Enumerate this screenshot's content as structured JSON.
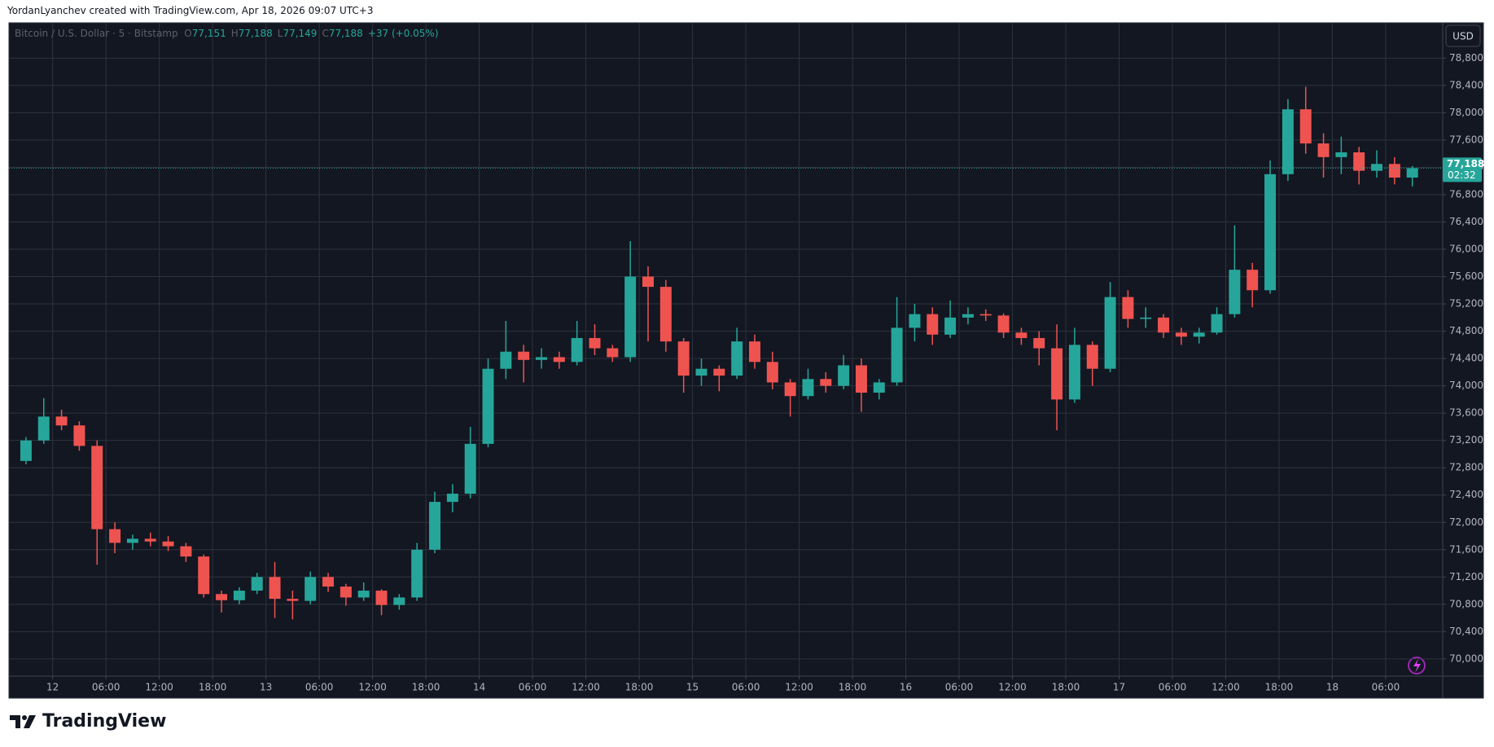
{
  "header": {
    "attribution": "YordanLyanchev created with TradingView.com, Apr 18, 2026 09:07 UTC+3"
  },
  "chart_data": {
    "type": "candlestick",
    "title": "Bitcoin / U.S. Dollar · 5 · Bitstamp",
    "ohlc_legend": [
      {
        "label": "O",
        "value": "77,151"
      },
      {
        "label": "H",
        "value": "77,188"
      },
      {
        "label": "L",
        "value": "77,149"
      },
      {
        "label": "C",
        "value": "77,188"
      }
    ],
    "change": "+37 (+0.05%)",
    "currency": "USD",
    "last_price": {
      "value": 77188,
      "label": "77,188"
    },
    "countdown": "02:32",
    "up_color": "#26a69a",
    "down_color": "#ef5350",
    "x": [
      "2026-04-11 20:00",
      "2026-04-11 22:00",
      "2026-04-12 00:00",
      "2026-04-12 02:00",
      "2026-04-12 04:00",
      "2026-04-12 06:00",
      "2026-04-12 08:00",
      "2026-04-12 10:00",
      "2026-04-12 12:00",
      "2026-04-12 14:00",
      "2026-04-12 16:00",
      "2026-04-12 18:00",
      "2026-04-12 20:00",
      "2026-04-12 22:00",
      "2026-04-13 00:00",
      "2026-04-13 02:00",
      "2026-04-13 04:00",
      "2026-04-13 06:00",
      "2026-04-13 08:00",
      "2026-04-13 10:00",
      "2026-04-13 12:00",
      "2026-04-13 14:00",
      "2026-04-13 16:00",
      "2026-04-13 18:00",
      "2026-04-13 20:00",
      "2026-04-13 22:00",
      "2026-04-14 00:00",
      "2026-04-14 02:00",
      "2026-04-14 04:00",
      "2026-04-14 06:00",
      "2026-04-14 08:00",
      "2026-04-14 10:00",
      "2026-04-14 12:00",
      "2026-04-14 14:00",
      "2026-04-14 16:00",
      "2026-04-14 18:00",
      "2026-04-14 20:00",
      "2026-04-14 22:00",
      "2026-04-15 00:00",
      "2026-04-15 02:00",
      "2026-04-15 04:00",
      "2026-04-15 06:00",
      "2026-04-15 08:00",
      "2026-04-15 10:00",
      "2026-04-15 12:00",
      "2026-04-15 14:00",
      "2026-04-15 16:00",
      "2026-04-15 18:00",
      "2026-04-15 20:00",
      "2026-04-15 22:00",
      "2026-04-16 00:00",
      "2026-04-16 02:00",
      "2026-04-16 04:00",
      "2026-04-16 06:00",
      "2026-04-16 08:00",
      "2026-04-16 10:00",
      "2026-04-16 12:00",
      "2026-04-16 14:00",
      "2026-04-16 16:00",
      "2026-04-16 18:00",
      "2026-04-16 20:00",
      "2026-04-16 22:00",
      "2026-04-17 00:00",
      "2026-04-17 02:00",
      "2026-04-17 04:00",
      "2026-04-17 06:00",
      "2026-04-17 08:00",
      "2026-04-17 10:00",
      "2026-04-17 12:00",
      "2026-04-17 14:00",
      "2026-04-17 16:00",
      "2026-04-17 18:00",
      "2026-04-17 20:00",
      "2026-04-17 22:00",
      "2026-04-18 00:00",
      "2026-04-18 02:00",
      "2026-04-18 04:00",
      "2026-04-18 06:00",
      "2026-04-18 08:00"
    ],
    "open": [
      72900,
      73200,
      73550,
      73420,
      73120,
      71900,
      71700,
      71760,
      71720,
      71650,
      71500,
      70950,
      70860,
      71000,
      71200,
      70880,
      70850,
      71200,
      71060,
      70900,
      71000,
      70790,
      70900,
      71600,
      72300,
      72420,
      73150,
      74250,
      74500,
      74380,
      74420,
      74350,
      74700,
      74550,
      74420,
      75600,
      75450,
      74650,
      74150,
      74250,
      74150,
      74650,
      74350,
      74050,
      73850,
      74100,
      74000,
      74300,
      73900,
      74050,
      74850,
      75050,
      74750,
      75000,
      75050,
      75030,
      74780,
      74700,
      74550,
      73800,
      74600,
      74250,
      75300,
      74980,
      75000,
      74780,
      74720,
      74780,
      75050,
      75700,
      75400,
      77100,
      78050,
      77550,
      77350,
      77420,
      77150,
      77250,
      77050
    ],
    "high": [
      73250,
      73820,
      73650,
      73480,
      73200,
      72000,
      71820,
      71850,
      71800,
      71700,
      71530,
      71000,
      71050,
      71260,
      71420,
      71000,
      71280,
      71260,
      71100,
      71120,
      71020,
      70950,
      71700,
      72450,
      72560,
      73400,
      74400,
      74950,
      74600,
      74550,
      74500,
      74950,
      74900,
      74600,
      76120,
      75750,
      75550,
      74700,
      74400,
      74300,
      74850,
      74750,
      74500,
      74100,
      74250,
      74200,
      74450,
      74400,
      74100,
      75300,
      75200,
      75150,
      75250,
      75150,
      75120,
      75060,
      74850,
      74800,
      74900,
      74850,
      74650,
      75520,
      75400,
      75150,
      75050,
      74850,
      74850,
      75150,
      76350,
      75800,
      77300,
      78200,
      78380,
      77700,
      77650,
      77500,
      77450,
      77350,
      77220
    ],
    "low": [
      72850,
      73150,
      73350,
      73050,
      71380,
      71550,
      71600,
      71650,
      71580,
      71420,
      70900,
      70680,
      70800,
      70950,
      70600,
      70580,
      70800,
      70980,
      70780,
      70850,
      70640,
      70720,
      70850,
      71550,
      72150,
      72350,
      73100,
      74100,
      74050,
      74250,
      74250,
      74300,
      74450,
      74350,
      74350,
      74650,
      74500,
      73900,
      74000,
      73920,
      74100,
      74250,
      73950,
      73550,
      73800,
      73900,
      73950,
      73620,
      73800,
      74000,
      74650,
      74600,
      74700,
      74900,
      74950,
      74700,
      74600,
      74300,
      73350,
      73750,
      74000,
      74200,
      74850,
      74850,
      74700,
      74600,
      74620,
      74750,
      75000,
      75150,
      75350,
      77000,
      77400,
      77050,
      77100,
      76950,
      77050,
      76950,
      76920
    ],
    "close": [
      73200,
      73550,
      73420,
      73120,
      71900,
      71700,
      71760,
      71720,
      71650,
      71500,
      70950,
      70860,
      71000,
      71200,
      70880,
      70850,
      71200,
      71060,
      70900,
      71000,
      70790,
      70900,
      71600,
      72300,
      72420,
      73150,
      74250,
      74500,
      74380,
      74420,
      74350,
      74700,
      74550,
      74420,
      75600,
      75450,
      74650,
      74150,
      74250,
      74150,
      74650,
      74350,
      74050,
      73850,
      74100,
      74000,
      74300,
      73900,
      74050,
      74850,
      75050,
      74750,
      75000,
      75050,
      75030,
      74780,
      74700,
      74550,
      73800,
      74600,
      74250,
      75300,
      74980,
      75000,
      74780,
      74720,
      74780,
      75050,
      75700,
      75400,
      77100,
      78050,
      77550,
      77350,
      77420,
      77150,
      77250,
      77050,
      77188
    ],
    "xlim": [
      "2026-04-11 19:05",
      "2026-04-18 12:25"
    ],
    "xticks": [
      {
        "value": "2026-04-12 00:00",
        "label": "12"
      },
      {
        "value": "2026-04-12 06:00",
        "label": "06:00"
      },
      {
        "value": "2026-04-12 12:00",
        "label": "12:00"
      },
      {
        "value": "2026-04-12 18:00",
        "label": "18:00"
      },
      {
        "value": "2026-04-13 00:00",
        "label": "13"
      },
      {
        "value": "2026-04-13 06:00",
        "label": "06:00"
      },
      {
        "value": "2026-04-13 12:00",
        "label": "12:00"
      },
      {
        "value": "2026-04-13 18:00",
        "label": "18:00"
      },
      {
        "value": "2026-04-14 00:00",
        "label": "14"
      },
      {
        "value": "2026-04-14 06:00",
        "label": "06:00"
      },
      {
        "value": "2026-04-14 12:00",
        "label": "12:00"
      },
      {
        "value": "2026-04-14 18:00",
        "label": "18:00"
      },
      {
        "value": "2026-04-15 00:00",
        "label": "15"
      },
      {
        "value": "2026-04-15 06:00",
        "label": "06:00"
      },
      {
        "value": "2026-04-15 12:00",
        "label": "12:00"
      },
      {
        "value": "2026-04-15 18:00",
        "label": "18:00"
      },
      {
        "value": "2026-04-16 00:00",
        "label": "16"
      },
      {
        "value": "2026-04-16 06:00",
        "label": "06:00"
      },
      {
        "value": "2026-04-16 12:00",
        "label": "12:00"
      },
      {
        "value": "2026-04-16 18:00",
        "label": "18:00"
      },
      {
        "value": "2026-04-17 00:00",
        "label": "17"
      },
      {
        "value": "2026-04-17 06:00",
        "label": "06:00"
      },
      {
        "value": "2026-04-17 12:00",
        "label": "12:00"
      },
      {
        "value": "2026-04-17 18:00",
        "label": "18:00"
      },
      {
        "value": "2026-04-18 00:00",
        "label": "18"
      },
      {
        "value": "2026-04-18 06:00",
        "label": "06:00"
      }
    ],
    "ylim": [
      69748,
      79317
    ],
    "yticks": [
      {
        "value": 70000,
        "label": "70,000"
      },
      {
        "value": 70400,
        "label": "70,400"
      },
      {
        "value": 70800,
        "label": "70,800"
      },
      {
        "value": 71200,
        "label": "71,200"
      },
      {
        "value": 71600,
        "label": "71,600"
      },
      {
        "value": 72000,
        "label": "72,000"
      },
      {
        "value": 72400,
        "label": "72,400"
      },
      {
        "value": 72800,
        "label": "72,800"
      },
      {
        "value": 73200,
        "label": "73,200"
      },
      {
        "value": 73600,
        "label": "73,600"
      },
      {
        "value": 74000,
        "label": "74,000"
      },
      {
        "value": 74400,
        "label": "74,400"
      },
      {
        "value": 74800,
        "label": "74,800"
      },
      {
        "value": 75200,
        "label": "75,200"
      },
      {
        "value": 75600,
        "label": "75,600"
      },
      {
        "value": 76000,
        "label": "76,000"
      },
      {
        "value": 76400,
        "label": "76,400"
      },
      {
        "value": 76800,
        "label": "76,800"
      },
      {
        "value": 77200,
        "label": "77,200"
      },
      {
        "value": 77600,
        "label": "77,600"
      },
      {
        "value": 78000,
        "label": "78,000"
      },
      {
        "value": 78400,
        "label": "78,400"
      },
      {
        "value": 78800,
        "label": "78,800"
      }
    ],
    "grid": true
  },
  "footer": {
    "brand": "TradingView"
  }
}
